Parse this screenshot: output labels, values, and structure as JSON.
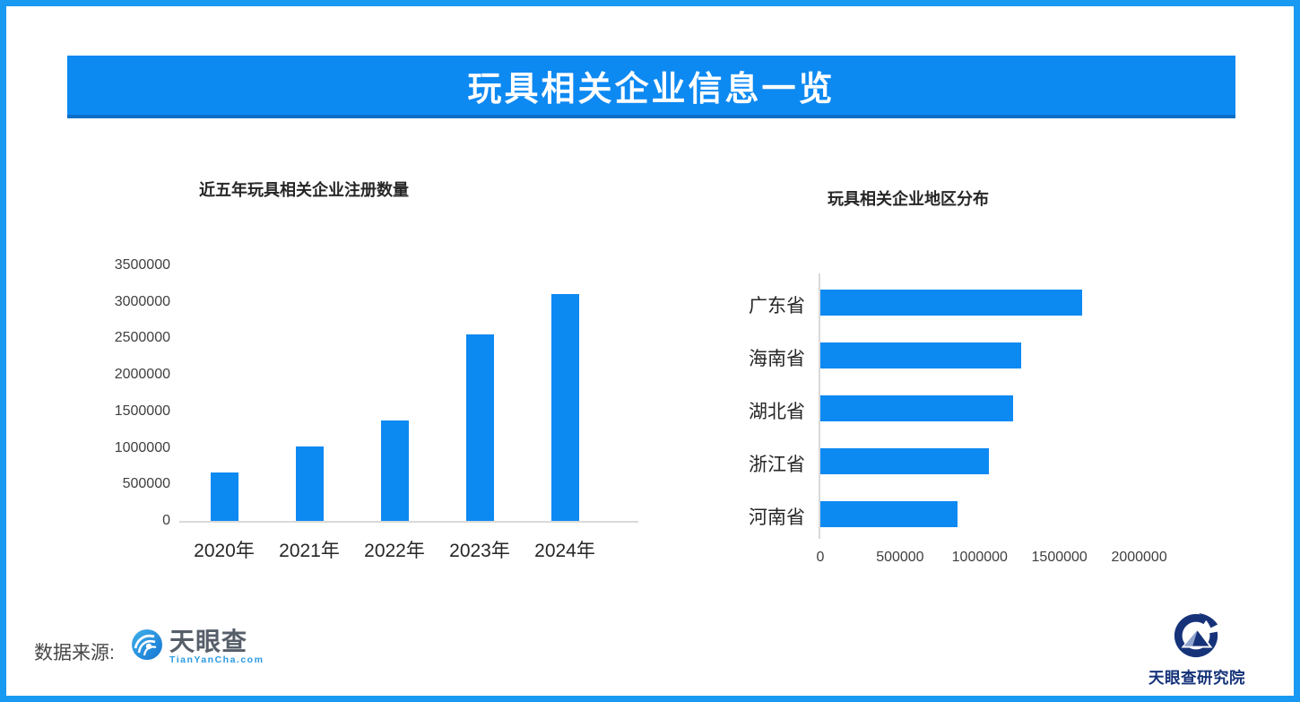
{
  "header": {
    "title": "玩具相关企业信息一览"
  },
  "footer": {
    "source_label": "数据来源:",
    "tianyancha": {
      "brand": "天眼查",
      "domain": "TianYanCha.com"
    },
    "research": {
      "brand": "天眼查研究院"
    }
  },
  "colors": {
    "accent_blue": "#0d89f2",
    "frame_blue": "#189af3",
    "banner_shadow": "#0b6fc6",
    "axis_gray": "#d9d9d9",
    "tick_text": "#3f3f3f",
    "logo_navy": "#16337a",
    "logo_blue": "#2a9ae0"
  },
  "chart_data": [
    {
      "type": "bar",
      "title": "近五年玩具相关企业注册数量",
      "categories": [
        "2020年",
        "2021年",
        "2022年",
        "2023年",
        "2024年"
      ],
      "values": [
        660000,
        1020000,
        1370000,
        2560000,
        3110000
      ],
      "xlabel": "",
      "ylabel": "",
      "ylim": [
        0,
        3500000
      ],
      "yticks": [
        0,
        500000,
        1000000,
        1500000,
        2000000,
        2500000,
        3000000,
        3500000
      ],
      "grid": false,
      "legend": "none",
      "bar_color": "#0d89f2"
    },
    {
      "type": "bar-horizontal",
      "title": "玩具相关企业地区分布",
      "categories": [
        "广东省",
        "海南省",
        "湖北省",
        "浙江省",
        "河南省"
      ],
      "values": [
        1640000,
        1260000,
        1210000,
        1060000,
        860000
      ],
      "xlabel": "",
      "ylabel": "",
      "xlim": [
        0,
        2250000
      ],
      "xticks": [
        0,
        500000,
        1000000,
        1500000,
        2000000
      ],
      "grid": false,
      "legend": "none",
      "bar_color": "#0d89f2"
    }
  ]
}
